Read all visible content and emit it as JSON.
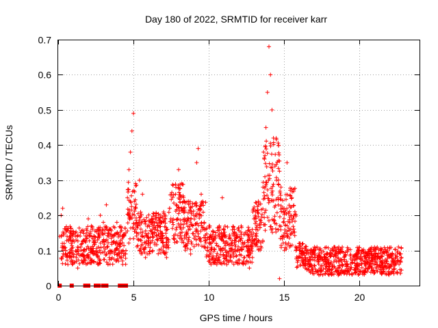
{
  "chart_data": {
    "type": "scatter",
    "title": "Day 180 of 2022, SRMTID for receiver karr",
    "xlabel": "GPS time / hours",
    "ylabel": "SRMTID / TECUs",
    "xlim": [
      0,
      24
    ],
    "ylim": [
      0,
      0.7
    ],
    "xticks": [
      0,
      5,
      10,
      15,
      20
    ],
    "yticks": [
      0,
      0.1,
      0.2,
      0.3,
      0.4,
      0.5,
      0.6,
      0.7
    ],
    "xtick_labels": [
      "0",
      "5",
      "10",
      "15",
      "20"
    ],
    "ytick_labels": [
      "0",
      "0.1",
      "0.2",
      "0.3",
      "0.4",
      "0.5",
      "0.6",
      "0.7"
    ],
    "grid": true,
    "marker": "+",
    "series": [
      {
        "name": "SRMTID",
        "color": "#ff0000",
        "points": [
          [
            0.1,
            0.14
          ],
          [
            0.2,
            0.2
          ],
          [
            0.3,
            0.22
          ],
          [
            0.4,
            0.12
          ],
          [
            0.5,
            0.1
          ],
          [
            0.6,
            0.16
          ],
          [
            0.8,
            0.15
          ],
          [
            1.0,
            0.13
          ],
          [
            1.2,
            0.08
          ],
          [
            1.3,
            0.05
          ],
          [
            1.5,
            0.11
          ],
          [
            1.7,
            0.13
          ],
          [
            1.9,
            0.15
          ],
          [
            2.0,
            0.19
          ],
          [
            2.2,
            0.17
          ],
          [
            2.4,
            0.14
          ],
          [
            2.6,
            0.16
          ],
          [
            2.8,
            0.2
          ],
          [
            3.0,
            0.18
          ],
          [
            3.2,
            0.23
          ],
          [
            3.4,
            0.08
          ],
          [
            3.5,
            0.16
          ],
          [
            3.7,
            0.14
          ],
          [
            3.9,
            0.18
          ],
          [
            4.1,
            0.12
          ],
          [
            4.3,
            0.1
          ],
          [
            4.5,
            0.15
          ],
          [
            4.6,
            0.25
          ],
          [
            4.7,
            0.33
          ],
          [
            4.8,
            0.38
          ],
          [
            4.9,
            0.44
          ],
          [
            5.0,
            0.49
          ],
          [
            5.1,
            0.22
          ],
          [
            5.2,
            0.18
          ],
          [
            5.4,
            0.3
          ],
          [
            5.6,
            0.26
          ],
          [
            5.8,
            0.08
          ],
          [
            6.0,
            0.12
          ],
          [
            6.2,
            0.19
          ],
          [
            6.4,
            0.15
          ],
          [
            6.6,
            0.17
          ],
          [
            6.8,
            0.14
          ],
          [
            7.0,
            0.11
          ],
          [
            7.2,
            0.08
          ],
          [
            7.4,
            0.22
          ],
          [
            7.6,
            0.18
          ],
          [
            7.8,
            0.26
          ],
          [
            8.0,
            0.33
          ],
          [
            8.2,
            0.29
          ],
          [
            8.4,
            0.24
          ],
          [
            8.6,
            0.12
          ],
          [
            8.8,
            0.09
          ],
          [
            9.0,
            0.2
          ],
          [
            9.2,
            0.35
          ],
          [
            9.3,
            0.39
          ],
          [
            9.5,
            0.26
          ],
          [
            9.7,
            0.18
          ],
          [
            9.9,
            0.1
          ],
          [
            10.1,
            0.14
          ],
          [
            10.3,
            0.08
          ],
          [
            10.5,
            0.12
          ],
          [
            10.7,
            0.17
          ],
          [
            10.9,
            0.25
          ],
          [
            11.1,
            0.14
          ],
          [
            11.3,
            0.09
          ],
          [
            11.5,
            0.12
          ],
          [
            11.7,
            0.16
          ],
          [
            11.9,
            0.1
          ],
          [
            12.1,
            0.13
          ],
          [
            12.3,
            0.07
          ],
          [
            12.5,
            0.11
          ],
          [
            12.7,
            0.05
          ],
          [
            12.9,
            0.08
          ],
          [
            13.1,
            0.2
          ],
          [
            13.3,
            0.24
          ],
          [
            13.5,
            0.18
          ],
          [
            13.6,
            0.28
          ],
          [
            13.7,
            0.36
          ],
          [
            13.8,
            0.45
          ],
          [
            13.9,
            0.55
          ],
          [
            14.0,
            0.68
          ],
          [
            14.1,
            0.6
          ],
          [
            14.2,
            0.5
          ],
          [
            14.3,
            0.42
          ],
          [
            14.4,
            0.34
          ],
          [
            14.5,
            0.3
          ],
          [
            14.6,
            0.25
          ],
          [
            14.7,
            0.02
          ],
          [
            14.8,
            0.28
          ],
          [
            15.0,
            0.22
          ],
          [
            15.2,
            0.35
          ],
          [
            15.4,
            0.2
          ],
          [
            15.6,
            0.15
          ],
          [
            15.8,
            0.1
          ],
          [
            16.0,
            0.12
          ],
          [
            16.2,
            0.08
          ],
          [
            16.4,
            0.05
          ],
          [
            16.6,
            0.09
          ],
          [
            16.8,
            0.06
          ],
          [
            17.0,
            0.1
          ],
          [
            17.2,
            0.08
          ],
          [
            17.4,
            0.05
          ],
          [
            17.6,
            0.07
          ],
          [
            17.8,
            0.04
          ],
          [
            18.0,
            0.06
          ],
          [
            18.2,
            0.09
          ],
          [
            18.4,
            0.05
          ],
          [
            18.6,
            0.03
          ],
          [
            18.8,
            0.07
          ],
          [
            19.0,
            0.04
          ],
          [
            19.2,
            0.06
          ],
          [
            19.4,
            0.05
          ],
          [
            19.6,
            0.08
          ],
          [
            19.8,
            0.04
          ],
          [
            20.0,
            0.06
          ],
          [
            20.2,
            0.1
          ],
          [
            20.4,
            0.07
          ],
          [
            20.6,
            0.09
          ],
          [
            20.8,
            0.05
          ],
          [
            21.0,
            0.08
          ],
          [
            21.2,
            0.06
          ],
          [
            21.4,
            0.1
          ],
          [
            21.6,
            0.04
          ],
          [
            21.8,
            0.07
          ],
          [
            22.0,
            0.05
          ],
          [
            22.2,
            0.09
          ],
          [
            22.4,
            0.06
          ],
          [
            22.6,
            0.11
          ],
          [
            22.8,
            0.08
          ]
        ],
        "bands": [
          {
            "x": [
              0.2,
              4.5
            ],
            "lo": 0.06,
            "hi": 0.17
          },
          {
            "x": [
              4.6,
              5.2
            ],
            "lo": 0.12,
            "hi": 0.3
          },
          {
            "x": [
              5.2,
              7.4
            ],
            "lo": 0.09,
            "hi": 0.21
          },
          {
            "x": [
              7.4,
              8.4
            ],
            "lo": 0.12,
            "hi": 0.29
          },
          {
            "x": [
              8.4,
              9.8
            ],
            "lo": 0.1,
            "hi": 0.24
          },
          {
            "x": [
              9.8,
              12.9
            ],
            "lo": 0.06,
            "hi": 0.17
          },
          {
            "x": [
              12.9,
              13.6
            ],
            "lo": 0.1,
            "hi": 0.24
          },
          {
            "x": [
              13.6,
              14.7
            ],
            "lo": 0.15,
            "hi": 0.42
          },
          {
            "x": [
              14.7,
              15.8
            ],
            "lo": 0.1,
            "hi": 0.28
          },
          {
            "x": [
              15.8,
              16.5
            ],
            "lo": 0.05,
            "hi": 0.12
          },
          {
            "x": [
              16.5,
              22.8
            ],
            "lo": 0.03,
            "hi": 0.11
          }
        ]
      },
      {
        "name": "zero-level markers",
        "color": "#ff0000",
        "points": [
          [
            0.1,
            0
          ],
          [
            0.9,
            0
          ],
          [
            1.8,
            0
          ],
          [
            2.0,
            0
          ],
          [
            2.5,
            0
          ],
          [
            2.7,
            0
          ],
          [
            3.0,
            0
          ],
          [
            3.2,
            0
          ],
          [
            4.1,
            0
          ],
          [
            4.3,
            0
          ],
          [
            4.5,
            0
          ]
        ]
      }
    ]
  }
}
